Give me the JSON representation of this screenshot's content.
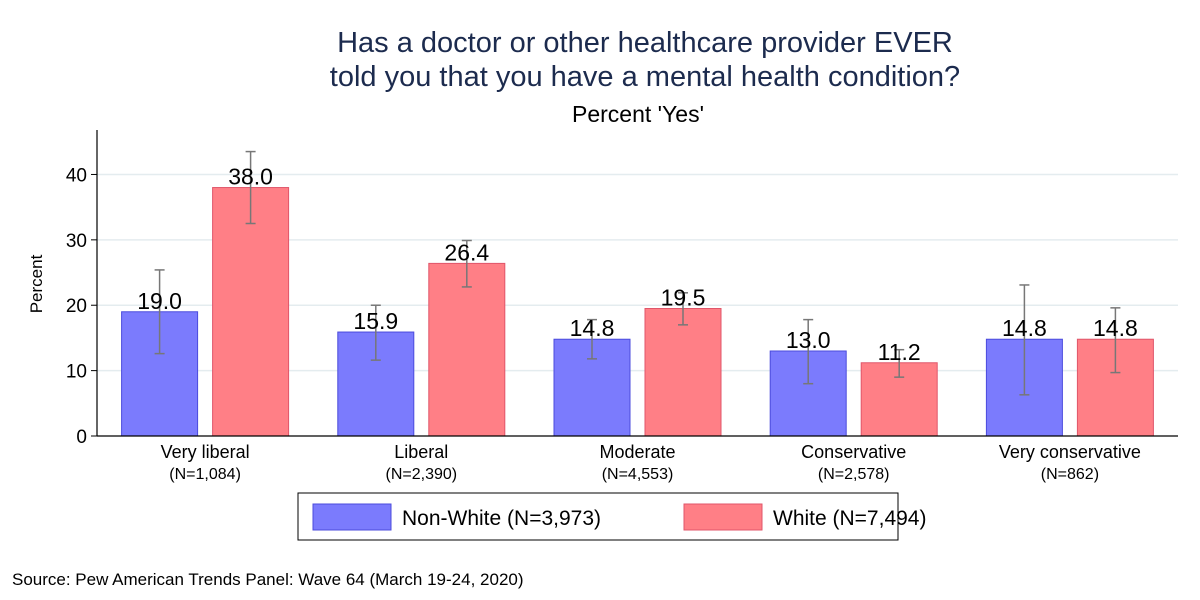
{
  "chart_data": {
    "type": "bar",
    "title": "Has a doctor or other healthcare provider EVER\ntold you that you have a mental health condition?",
    "title_lines": [
      "Has a doctor or other healthcare provider EVER",
      "told you that you have a mental health condition?"
    ],
    "subtitle": "Percent 'Yes'",
    "xlabel": "",
    "ylabel": "Percent",
    "ylim": [
      0,
      46.8
    ],
    "yticks": [
      0,
      10,
      20,
      30,
      40
    ],
    "grid": true,
    "legend_placement": "bottom",
    "categories": [
      {
        "label": "Very liberal",
        "n": "(N=1,084)"
      },
      {
        "label": "Liberal",
        "n": "(N=2,390)"
      },
      {
        "label": "Moderate",
        "n": "(N=4,553)"
      },
      {
        "label": "Conservative",
        "n": "(N=2,578)"
      },
      {
        "label": "Very conservative",
        "n": "(N=862)"
      }
    ],
    "series": [
      {
        "name": "Non-White (N=3,973)",
        "color": "#7b7bfd",
        "edge": "#4b4bdc",
        "values": [
          19.0,
          15.9,
          14.8,
          13.0,
          14.8
        ],
        "labels": [
          "19.0",
          "15.9",
          "14.8",
          "13.0",
          "14.8"
        ],
        "ci_low": [
          12.6,
          11.6,
          11.8,
          8.0,
          6.3
        ],
        "ci_high": [
          25.4,
          20.0,
          17.8,
          17.8,
          23.1
        ]
      },
      {
        "name": "White (N=7,494)",
        "color": "#ff7f86",
        "edge": "#e0566a",
        "values": [
          38.0,
          26.4,
          19.5,
          11.2,
          14.8
        ],
        "labels": [
          "38.0",
          "26.4",
          "19.5",
          "11.2",
          "14.8"
        ],
        "ci_low": [
          32.5,
          22.8,
          17.0,
          9.0,
          9.7
        ],
        "ci_high": [
          43.5,
          29.9,
          21.9,
          13.2,
          19.6
        ]
      }
    ],
    "error_bar_color": "#777777",
    "title_color": "#1c2b4e"
  },
  "source": "Source: Pew American Trends Panel: Wave 64 (March 19-24, 2020)"
}
